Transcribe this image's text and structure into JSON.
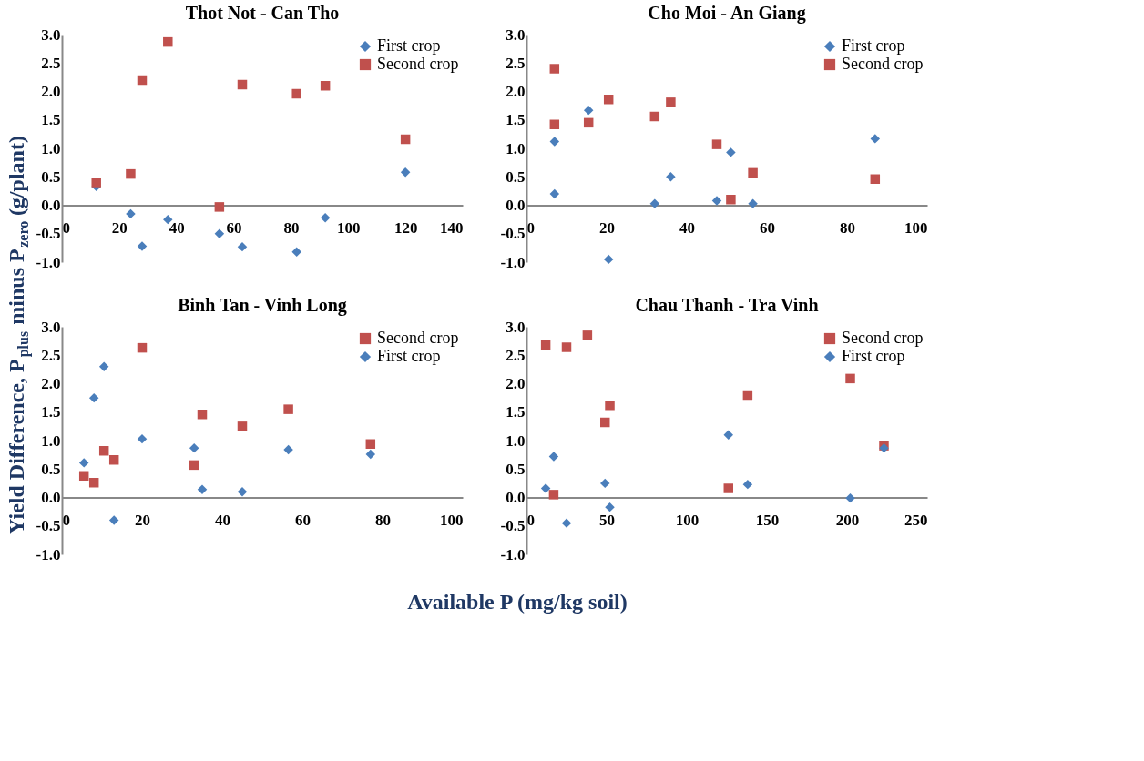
{
  "chart_data": [
    {
      "type": "scatter",
      "title": "Thot Not - Can Tho",
      "ylabel": "Yield Difference, P$_{plus}$ minus P$_{zero}$ (g/plant)",
      "xlim": [
        0,
        140
      ],
      "xticks": [
        0,
        20,
        40,
        60,
        80,
        100,
        120,
        140
      ],
      "ylim": [
        -1,
        3
      ],
      "yticks": [
        {
          "value": -1,
          "label": "-1.0"
        },
        {
          "value": -0.5,
          "label": "-0.5"
        },
        {
          "value": 0,
          "label": "0.0"
        },
        {
          "value": 0.5,
          "label": "0.5"
        },
        {
          "value": 1,
          "label": "1.0"
        },
        {
          "value": 1.5,
          "label": "1.5"
        },
        {
          "value": 2,
          "label": "2.0"
        },
        {
          "value": 2.5,
          "label": "2.5"
        },
        {
          "value": 3,
          "label": "3.0"
        }
      ],
      "grid": false,
      "legend": "top right",
      "series": [
        {
          "name": "First crop",
          "color": "#4a7ebb",
          "marker": "diamond",
          "x": [
            12,
            24,
            28,
            37,
            55,
            63,
            82,
            92,
            120
          ],
          "values": [
            0.33,
            -0.15,
            -0.72,
            -0.25,
            -0.5,
            -0.73,
            -0.82,
            -0.22,
            0.58
          ]
        },
        {
          "name": "Second crop",
          "color": "#c0504d",
          "marker": "square",
          "x": [
            12,
            24,
            28,
            37,
            55,
            63,
            82,
            92,
            120
          ],
          "values": [
            0.4,
            0.55,
            2.2,
            2.87,
            -0.03,
            2.12,
            1.96,
            2.1,
            1.16
          ]
        }
      ]
    },
    {
      "type": "scatter",
      "title": "Cho Moi - An Giang",
      "xlim": [
        0,
        100
      ],
      "xticks": [
        0,
        20,
        40,
        60,
        80,
        100
      ],
      "ylim": [
        -1,
        3
      ],
      "yticks": [
        {
          "value": -1,
          "label": "-1.0"
        },
        {
          "value": -0.5,
          "label": "-0.5"
        },
        {
          "value": 0,
          "label": "0.0"
        },
        {
          "value": 0.5,
          "label": "0.5"
        },
        {
          "value": 1,
          "label": "1.0"
        },
        {
          "value": 1.5,
          "label": "1.5"
        },
        {
          "value": 2,
          "label": "2.0"
        },
        {
          "value": 2.5,
          "label": "2.5"
        },
        {
          "value": 3,
          "label": "3.0"
        }
      ],
      "grid": false,
      "legend": "top right",
      "series": [
        {
          "name": "First crop",
          "color": "#4a7ebb",
          "marker": "diamond",
          "x": [
            7,
            7,
            15.5,
            20.5,
            32,
            36,
            47.5,
            51,
            56.5,
            87
          ],
          "values": [
            0.2,
            1.12,
            1.67,
            -0.95,
            0.03,
            0.5,
            0.08,
            0.93,
            0.03,
            1.17
          ]
        },
        {
          "name": "Second crop",
          "color": "#c0504d",
          "marker": "square",
          "x": [
            7,
            7,
            15.5,
            20.5,
            32,
            36,
            47.5,
            51,
            56.5,
            87
          ],
          "values": [
            2.4,
            1.42,
            1.45,
            1.86,
            1.56,
            1.81,
            1.07,
            0.1,
            0.57,
            0.46
          ]
        }
      ]
    },
    {
      "type": "scatter",
      "title": "Binh Tan - Vinh Long",
      "xlabel": "Available P (mg/kg soil)",
      "xlim": [
        0,
        100
      ],
      "xticks": [
        0,
        20,
        40,
        60,
        80,
        100
      ],
      "ylim": [
        -1,
        3
      ],
      "yticks": [
        {
          "value": -1,
          "label": "-1.0"
        },
        {
          "value": -0.5,
          "label": "-0.5"
        },
        {
          "value": 0,
          "label": "0.0"
        },
        {
          "value": 0.5,
          "label": "0.5"
        },
        {
          "value": 1,
          "label": "1.0"
        },
        {
          "value": 1.5,
          "label": "1.5"
        },
        {
          "value": 2,
          "label": "2.0"
        },
        {
          "value": 2.5,
          "label": "2.5"
        },
        {
          "value": 3,
          "label": "3.0"
        }
      ],
      "grid": false,
      "legend": "top right",
      "series": [
        {
          "name": "Second crop",
          "color": "#c0504d",
          "marker": "square",
          "x": [
            5.5,
            8,
            10.5,
            13,
            20,
            33,
            35,
            45,
            56.5,
            77
          ],
          "values": [
            0.38,
            0.26,
            0.82,
            0.66,
            2.63,
            0.57,
            1.46,
            1.25,
            1.55,
            0.94
          ]
        },
        {
          "name": "First crop",
          "color": "#4a7ebb",
          "marker": "diamond",
          "x": [
            5.5,
            8,
            10.5,
            13,
            20,
            33,
            35,
            45,
            56.5,
            77
          ],
          "values": [
            0.61,
            1.75,
            2.3,
            -0.4,
            1.03,
            0.87,
            0.14,
            0.1,
            0.84,
            0.76
          ]
        }
      ]
    },
    {
      "type": "scatter",
      "title": "Chau Thanh - Tra Vinh",
      "xlim": [
        0,
        250
      ],
      "xticks": [
        0,
        50,
        100,
        150,
        200,
        250
      ],
      "ylim": [
        -1,
        3
      ],
      "yticks": [
        {
          "value": -1,
          "label": "-1.0"
        },
        {
          "value": -0.5,
          "label": "-0.5"
        },
        {
          "value": 0,
          "label": "0.0"
        },
        {
          "value": 0.5,
          "label": "0.5"
        },
        {
          "value": 1,
          "label": "1.0"
        },
        {
          "value": 1.5,
          "label": "1.5"
        },
        {
          "value": 2,
          "label": "2.0"
        },
        {
          "value": 2.5,
          "label": "2.5"
        },
        {
          "value": 3,
          "label": "3.0"
        }
      ],
      "grid": false,
      "legend": "top right",
      "series": [
        {
          "name": "Second crop",
          "color": "#c0504d",
          "marker": "square",
          "x": [
            12,
            17,
            25,
            38,
            49,
            52,
            126,
            138,
            202,
            223
          ],
          "values": [
            2.68,
            0.05,
            2.64,
            2.85,
            1.32,
            1.62,
            0.16,
            1.8,
            2.09,
            0.91
          ]
        },
        {
          "name": "First crop",
          "color": "#4a7ebb",
          "marker": "diamond",
          "x": [
            12,
            17,
            25,
            49,
            52,
            126,
            138,
            202,
            223
          ],
          "values": [
            0.16,
            0.72,
            -0.45,
            0.25,
            -0.17,
            1.1,
            0.23,
            -0.01,
            0.87
          ]
        }
      ]
    }
  ]
}
